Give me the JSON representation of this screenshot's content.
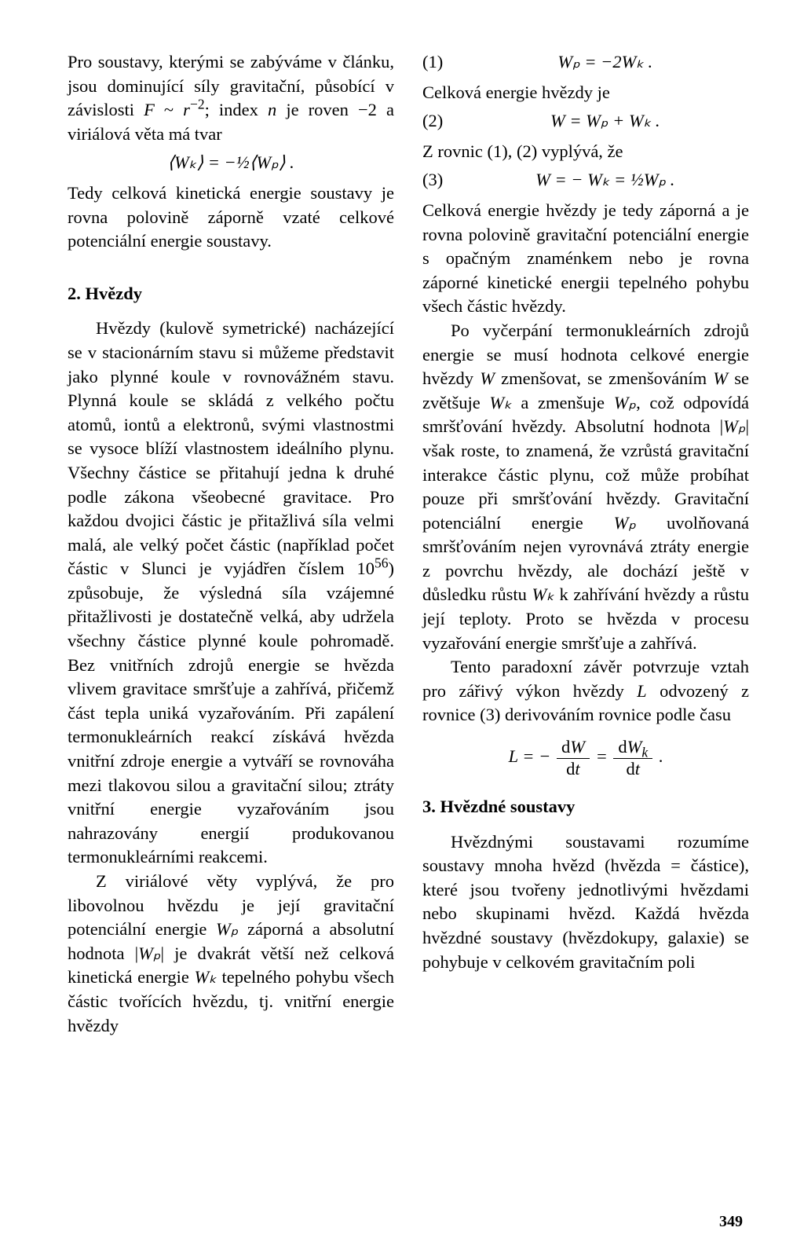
{
  "page_number": "349",
  "col_left": {
    "p1": "Pro soustavy, kterými se zabýváme v článku, jsou dominující síly gravitační, působící v závislosti ",
    "p1_math_a": "F",
    "p1_b": " ~ ",
    "p1_math_b": "r",
    "p1_exp": "−2",
    "p1_c": "; index ",
    "p1_math_c": "n",
    "p1_d": " je roven −2 a viriálová věta má tvar",
    "eq1": "⟨Wₖ⟩  =  −½⟨Wₚ⟩ .",
    "p2": "Tedy celková kinetická energie soustavy je rovna polovině záporně vzaté celkové potenciální energie soustavy.",
    "sec2": "2. Hvězdy",
    "p3": "Hvězdy (kulově symetrické) nacházející se v stacionárním stavu si můžeme představit jako plynné koule v rovnovážném stavu. Plynná koule se skládá z velkého počtu atomů, iontů a elektronů, svými vlastnostmi se vysoce blíží vlastnostem ideálního plynu. Všechny částice se přitahují jedna k druhé podle zákona všeobecné gravitace. Pro každou dvojici částic je přitažlivá síla velmi malá, ale velký počet částic (například počet částic v Slunci je vyjádřen číslem 10",
    "p3_exp": "56",
    "p3_b": ") způsobuje, že výsledná síla vzájemné přitažlivosti je dostatečně velká, aby udržela všechny částice plynné koule pohromadě. Bez vnitřních zdrojů energie se hvězda vlivem gravitace smršťuje a zahřívá, přičemž část tepla uniká vyzařováním. Při zapálení termonukleárních reakcí získává hvězda vnitřní zdroje energie a vytváří se rovnováha mezi tlakovou silou a gravitační silou; ztráty vnitřní energie vyzařováním jsou nahrazovány energií produkovanou termonukleárními reakcemi.",
    "p4a": "Z viriálové věty vyplývá, že pro libovolnou hvězdu je její gravitační potenciální energie ",
    "p4_Wp": "Wₚ",
    "p4b": " záporná a absolutní hodnota |",
    "p4_Wp2": "Wₚ",
    "p4c": "| je dvakrát větší než celková kinetická energie ",
    "p4_Wk": "Wₖ",
    "p4d": " tepelného pohybu všech částic tvořících hvězdu, tj. vnitřní energie hvězdy"
  },
  "col_right": {
    "eq1_num": "(1)",
    "eq1_body": "Wₚ  =  −2Wₖ .",
    "p5": "Celková energie hvězdy je",
    "eq2_num": "(2)",
    "eq2_body": "W  =  Wₚ + Wₖ .",
    "p6": "Z rovnic (1), (2) vyplývá, že",
    "eq3_num": "(3)",
    "eq3_body": "W  =  − Wₖ  =  ½Wₚ .",
    "p7": "Celková energie hvězdy je tedy záporná a je rovna polovině gravitační potenciální energie s opačným znaménkem nebo je rovna záporné kinetické energii tepelného pohybu všech částic hvězdy.",
    "p8a": "Po vyčerpání termonukleárních zdrojů energie se musí hodnota celkové energie hvězdy ",
    "p8_W": "W",
    "p8b": " zmenšovat, se zmenšováním ",
    "p8_W2": "W",
    "p8c": " se zvětšuje ",
    "p8_Wk": "Wₖ",
    "p8d": " a zmenšuje ",
    "p8_Wp": "Wₚ",
    "p8e": ", což odpovídá smršťování hvězdy. Absolutní hodnota |",
    "p8_Wp2": "Wₚ",
    "p8f": "| však roste, to znamená, že vzrůstá gravitační interakce částic plynu, což může probíhat pouze při smršťování hvězdy. Gravitační potenciální energie ",
    "p8_Wp3": "Wₚ",
    "p8g": " uvolňovaná smršťováním nejen vyrovnává ztráty energie z povrchu hvězdy, ale dochází ještě v důsledku růstu ",
    "p8_Wk2": "Wₖ",
    "p8h": " k zahřívání hvězdy a růstu její teploty. Proto se hvězda v procesu vyzařování energie smršťuje a zahřívá.",
    "p9a": "Tento paradoxní závěr potvrzuje vztah pro zářivý výkon hvězdy ",
    "p9_L": "L",
    "p9b": " odvozený z rovnice (3) derivováním rovnice podle času",
    "eqL_pre": "L  =  −",
    "eqL_num1": "dW",
    "eqL_den1": "dt",
    "eqL_mid": "  =  ",
    "eqL_num2": "dWₖ",
    "eqL_den2": "dt",
    "eqL_post": " .",
    "sec3": "3. Hvězdné soustavy",
    "p10": "Hvězdnými soustavami rozumíme soustavy mnoha hvězd (hvězda = částice), které jsou tvořeny jednotlivými hvězdami nebo skupinami hvězd. Každá hvězda hvězdné soustavy (hvězdokupy, galaxie) se pohybuje v celkovém gravitačním poli"
  }
}
